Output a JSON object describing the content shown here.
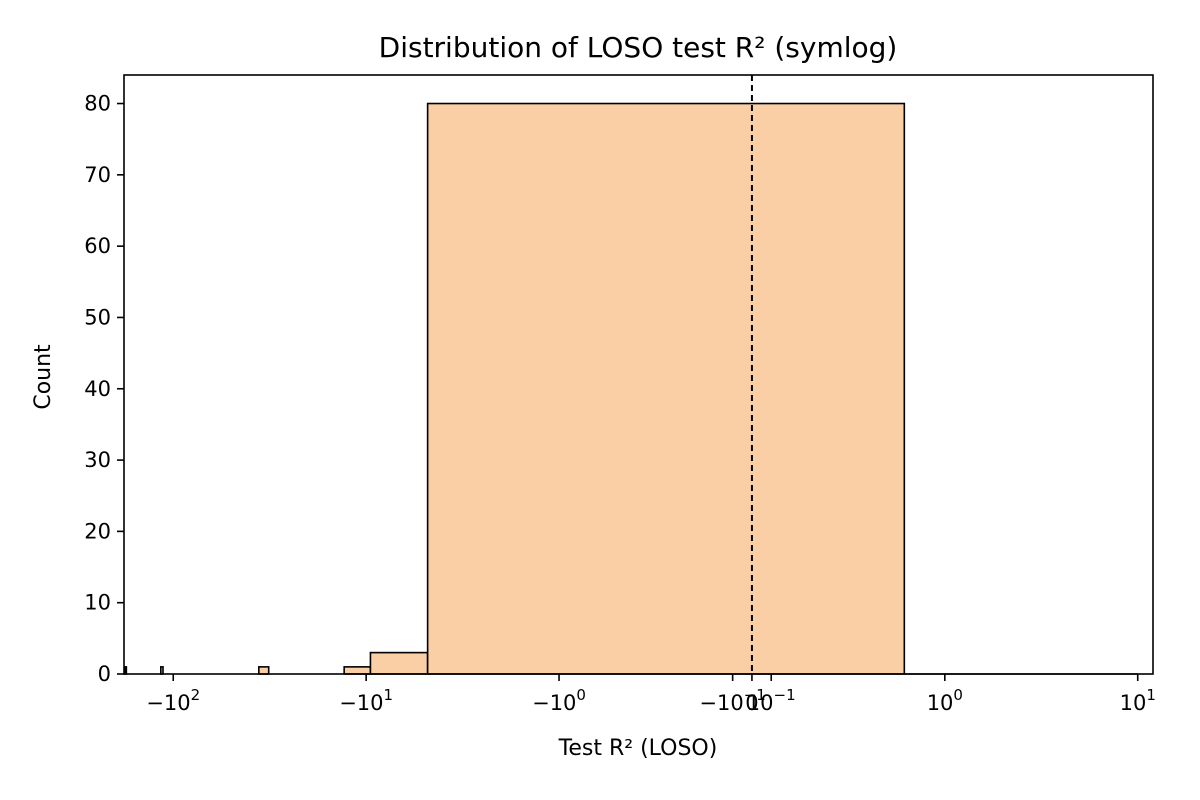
{
  "chart_data": {
    "type": "bar",
    "title": "Distribution of LOSO test R² (symlog)",
    "xlabel": "Test R² (LOSO)",
    "ylabel": "Count",
    "x_scale": "symlog",
    "x_linthresh": 1,
    "xlim": [
      -180,
      12
    ],
    "ylim": [
      0,
      84
    ],
    "grid": false,
    "bar_color": "#fbcfa5",
    "edge_color": "#000000",
    "reference_line": {
      "x": 0,
      "style": "dashed",
      "color": "#000000"
    },
    "x_ticks": [
      {
        "value": -100,
        "base": "−10",
        "exp": "2"
      },
      {
        "value": -10,
        "base": "−10",
        "exp": "1"
      },
      {
        "value": -1,
        "base": "−10",
        "exp": "0"
      },
      {
        "value": -0.1,
        "base": "−10",
        "exp": "−1"
      },
      {
        "value": 0,
        "base": "0",
        "exp": ""
      },
      {
        "value": 0.1,
        "base": "10",
        "exp": "−1"
      },
      {
        "value": 1,
        "base": "10",
        "exp": "0"
      },
      {
        "value": 10,
        "base": "10",
        "exp": "1"
      }
    ],
    "y_ticks": [
      0,
      10,
      20,
      30,
      40,
      50,
      60,
      70,
      80
    ],
    "bins": [
      {
        "start": -178,
        "end": -175,
        "count": 1
      },
      {
        "start": -116,
        "end": -113,
        "count": 1
      },
      {
        "start": -36,
        "end": -32,
        "count": 1
      },
      {
        "start": -13,
        "end": -9.5,
        "count": 1
      },
      {
        "start": -9.5,
        "end": -4.8,
        "count": 3
      },
      {
        "start": -4.8,
        "end": 0.79,
        "count": 80
      },
      {
        "start": 0.79,
        "end": 10,
        "count": 0
      }
    ]
  }
}
